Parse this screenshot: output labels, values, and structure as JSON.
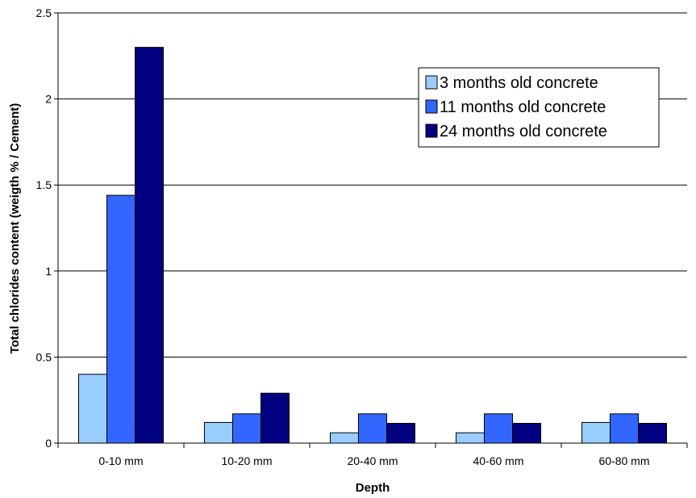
{
  "chart_data": {
    "type": "bar",
    "title": "",
    "xlabel": "Depth",
    "ylabel": "Total chlorides content (weigth % / Cement)",
    "categories": [
      "0-10 mm",
      "10-20 mm",
      "20-40 mm",
      "40-60 mm",
      "60-80 mm"
    ],
    "series": [
      {
        "name": "3 months old concrete",
        "values": [
          0.4,
          0.12,
          0.06,
          0.06,
          0.12
        ],
        "color": "#99ccff"
      },
      {
        "name": "11 months old concrete",
        "values": [
          1.44,
          0.17,
          0.17,
          0.17,
          0.17
        ],
        "color": "#3366ff"
      },
      {
        "name": "24 months old concrete",
        "values": [
          2.3,
          0.29,
          0.115,
          0.115,
          0.115
        ],
        "color": "#000080"
      }
    ],
    "ylim": [
      0,
      2.5
    ],
    "yticks": [
      "0",
      "0.5",
      "1",
      "1.5",
      "2",
      "2.5"
    ],
    "grid": true,
    "legend_position": "top-right"
  }
}
